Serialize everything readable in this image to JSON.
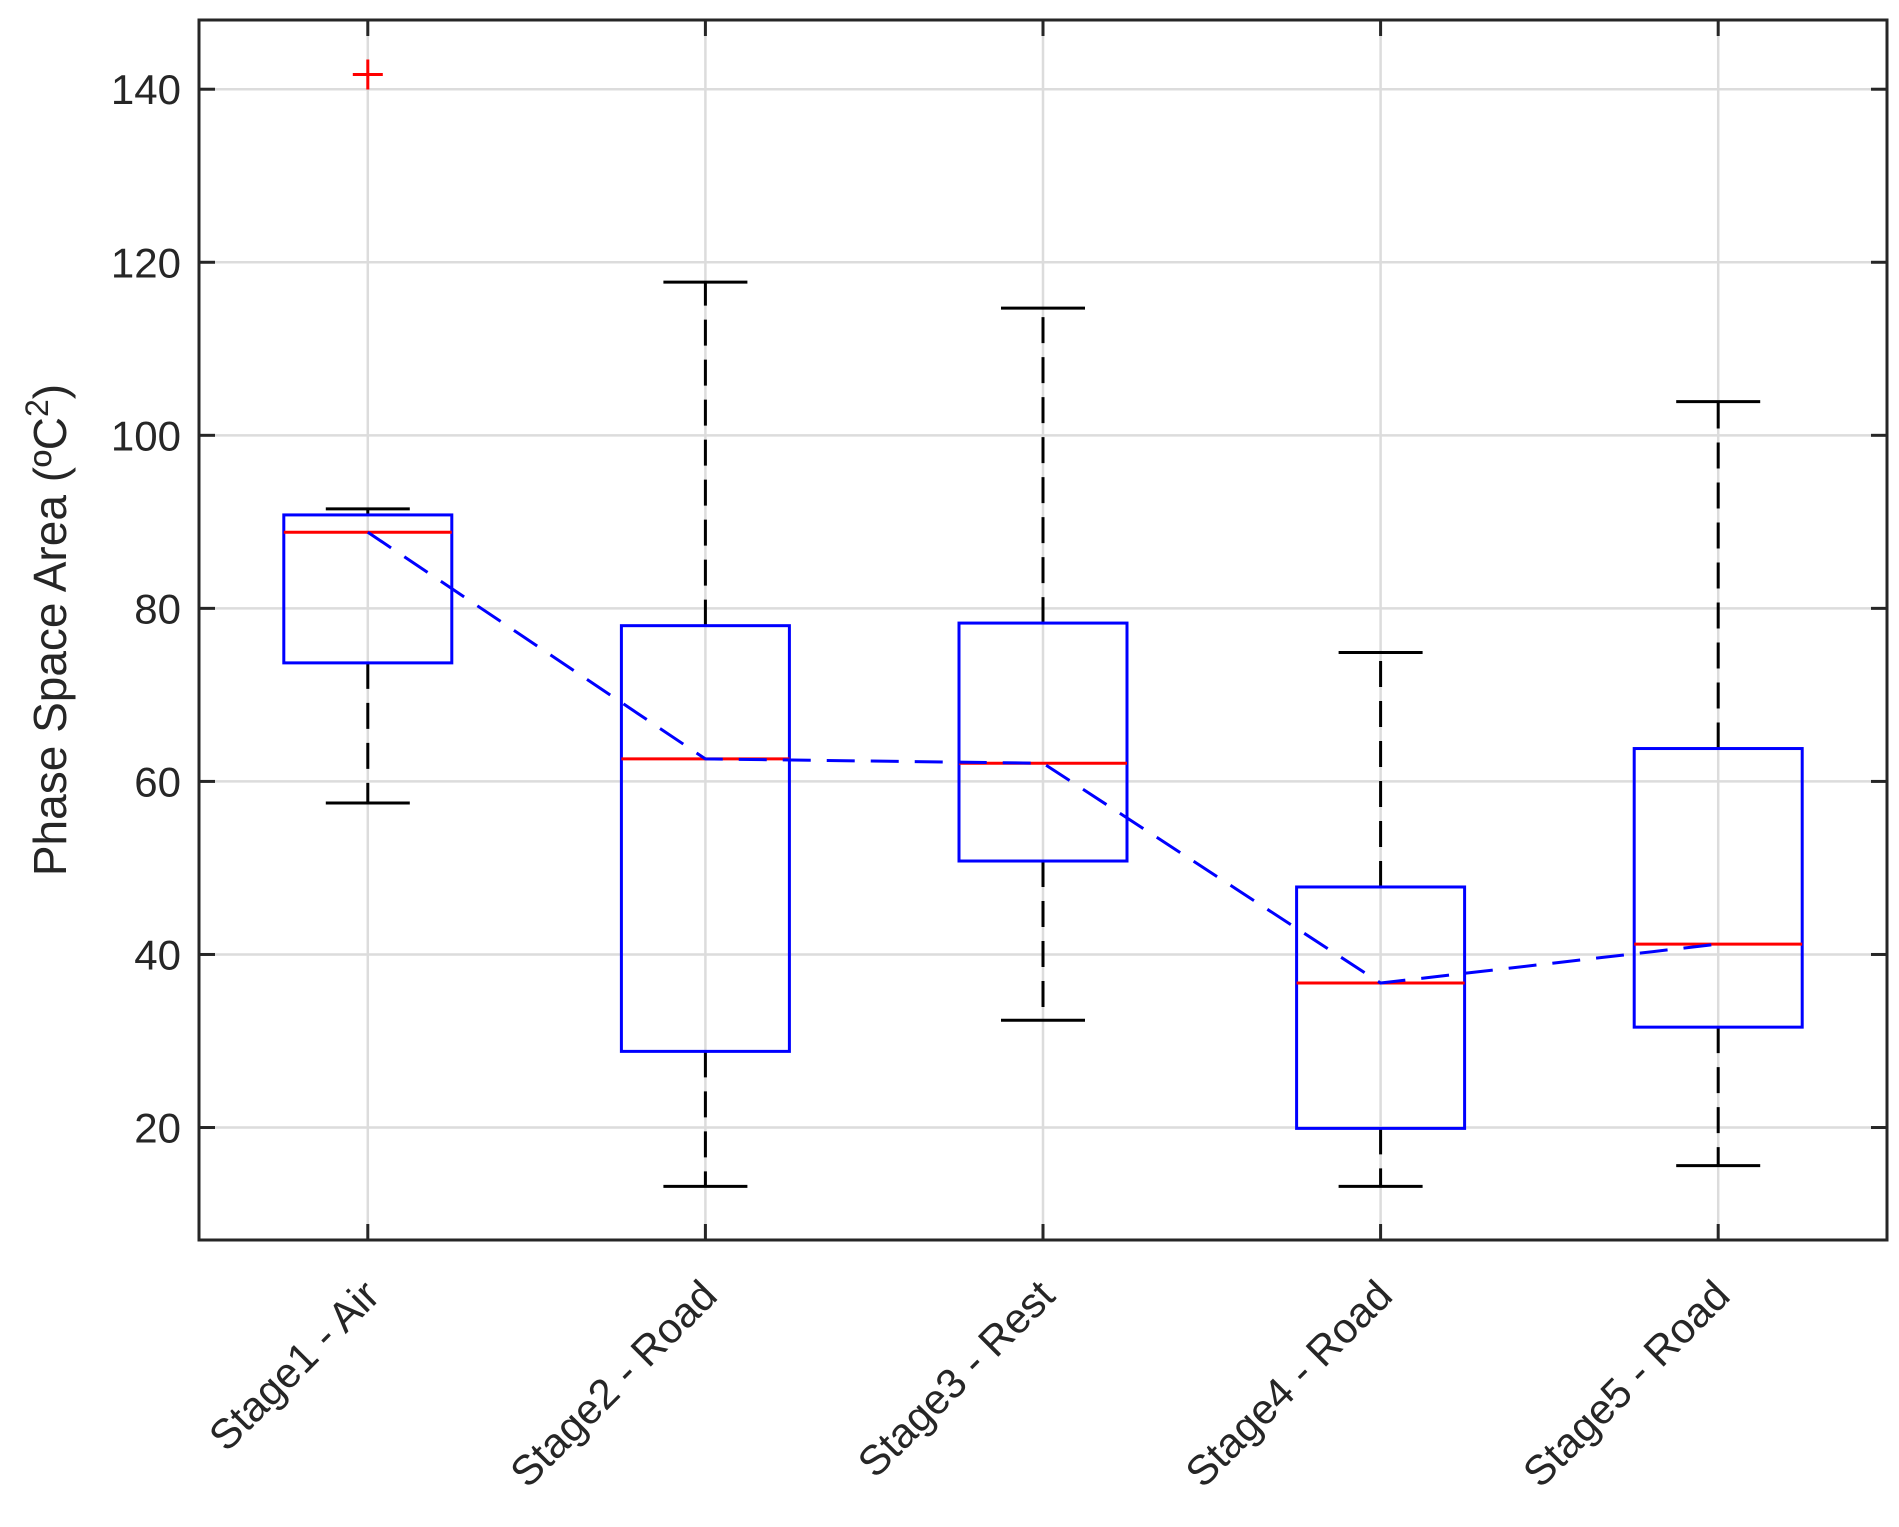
{
  "chart_data": {
    "type": "boxplot",
    "title": "",
    "xlabel": "",
    "ylabel": "Phase Space Area (ºC",
    "ylabel_superscript": "2",
    "ylabel_suffix": ")",
    "ylim": [
      7,
      148
    ],
    "yticks": [
      20,
      40,
      60,
      80,
      100,
      120,
      140
    ],
    "grid": true,
    "categories": [
      "Stage1 - Air",
      "Stage2 - Road",
      "Stage3 - Rest",
      "Stage4 - Road",
      "Stage5 - Road"
    ],
    "boxes": [
      {
        "whisker_low": 57.5,
        "q1": 73.7,
        "median": 88.8,
        "q3": 90.8,
        "whisker_high": 91.5,
        "outliers": [
          141.7
        ]
      },
      {
        "whisker_low": 13.2,
        "q1": 28.8,
        "median": 62.6,
        "q3": 78.0,
        "whisker_high": 117.7,
        "outliers": []
      },
      {
        "whisker_low": 32.4,
        "q1": 50.8,
        "median": 62.1,
        "q3": 78.3,
        "whisker_high": 114.7,
        "outliers": []
      },
      {
        "whisker_low": 13.2,
        "q1": 19.9,
        "median": 36.7,
        "q3": 47.8,
        "whisker_high": 74.9,
        "outliers": []
      },
      {
        "whisker_low": 15.6,
        "q1": 31.6,
        "median": 41.2,
        "q3": 63.8,
        "whisker_high": 103.9,
        "outliers": []
      }
    ],
    "trend_line": {
      "style": "dashed",
      "color": "#0000ff",
      "values": [
        88.8,
        62.6,
        62.1,
        36.7,
        41.2
      ]
    },
    "colors": {
      "box": "#0000ff",
      "median": "#ff0000",
      "whisker": "#000000",
      "outlier": "#ff0000",
      "grid": "#dcdcdc",
      "axis": "#262626"
    }
  }
}
